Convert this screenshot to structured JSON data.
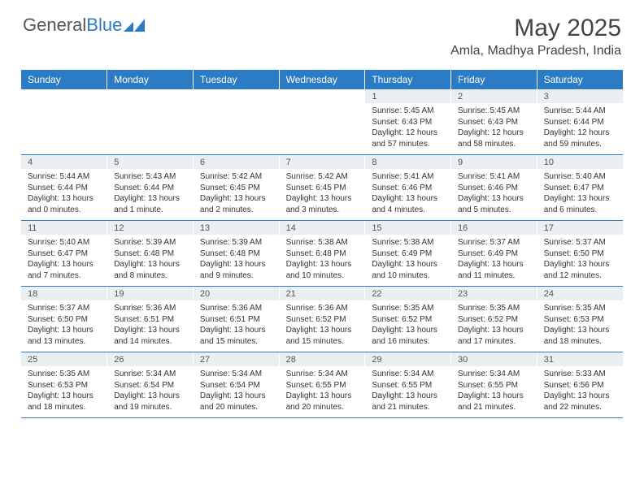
{
  "brand": {
    "general": "General",
    "blue": "Blue",
    "logo_color": "#2b7cc4"
  },
  "title": "May 2025",
  "location": "Amla, Madhya Pradesh, India",
  "colors": {
    "header_bg": "#2b7cc4",
    "header_text": "#ffffff",
    "daynum_bg": "#eceff1",
    "border": "#2b7cc4",
    "text": "#333333"
  },
  "weekdays": [
    "Sunday",
    "Monday",
    "Tuesday",
    "Wednesday",
    "Thursday",
    "Friday",
    "Saturday"
  ],
  "weeks": [
    [
      null,
      null,
      null,
      null,
      {
        "n": "1",
        "sunrise": "5:45 AM",
        "sunset": "6:43 PM",
        "daylight": "12 hours and 57 minutes."
      },
      {
        "n": "2",
        "sunrise": "5:45 AM",
        "sunset": "6:43 PM",
        "daylight": "12 hours and 58 minutes."
      },
      {
        "n": "3",
        "sunrise": "5:44 AM",
        "sunset": "6:44 PM",
        "daylight": "12 hours and 59 minutes."
      }
    ],
    [
      {
        "n": "4",
        "sunrise": "5:44 AM",
        "sunset": "6:44 PM",
        "daylight": "13 hours and 0 minutes."
      },
      {
        "n": "5",
        "sunrise": "5:43 AM",
        "sunset": "6:44 PM",
        "daylight": "13 hours and 1 minute."
      },
      {
        "n": "6",
        "sunrise": "5:42 AM",
        "sunset": "6:45 PM",
        "daylight": "13 hours and 2 minutes."
      },
      {
        "n": "7",
        "sunrise": "5:42 AM",
        "sunset": "6:45 PM",
        "daylight": "13 hours and 3 minutes."
      },
      {
        "n": "8",
        "sunrise": "5:41 AM",
        "sunset": "6:46 PM",
        "daylight": "13 hours and 4 minutes."
      },
      {
        "n": "9",
        "sunrise": "5:41 AM",
        "sunset": "6:46 PM",
        "daylight": "13 hours and 5 minutes."
      },
      {
        "n": "10",
        "sunrise": "5:40 AM",
        "sunset": "6:47 PM",
        "daylight": "13 hours and 6 minutes."
      }
    ],
    [
      {
        "n": "11",
        "sunrise": "5:40 AM",
        "sunset": "6:47 PM",
        "daylight": "13 hours and 7 minutes."
      },
      {
        "n": "12",
        "sunrise": "5:39 AM",
        "sunset": "6:48 PM",
        "daylight": "13 hours and 8 minutes."
      },
      {
        "n": "13",
        "sunrise": "5:39 AM",
        "sunset": "6:48 PM",
        "daylight": "13 hours and 9 minutes."
      },
      {
        "n": "14",
        "sunrise": "5:38 AM",
        "sunset": "6:48 PM",
        "daylight": "13 hours and 10 minutes."
      },
      {
        "n": "15",
        "sunrise": "5:38 AM",
        "sunset": "6:49 PM",
        "daylight": "13 hours and 10 minutes."
      },
      {
        "n": "16",
        "sunrise": "5:37 AM",
        "sunset": "6:49 PM",
        "daylight": "13 hours and 11 minutes."
      },
      {
        "n": "17",
        "sunrise": "5:37 AM",
        "sunset": "6:50 PM",
        "daylight": "13 hours and 12 minutes."
      }
    ],
    [
      {
        "n": "18",
        "sunrise": "5:37 AM",
        "sunset": "6:50 PM",
        "daylight": "13 hours and 13 minutes."
      },
      {
        "n": "19",
        "sunrise": "5:36 AM",
        "sunset": "6:51 PM",
        "daylight": "13 hours and 14 minutes."
      },
      {
        "n": "20",
        "sunrise": "5:36 AM",
        "sunset": "6:51 PM",
        "daylight": "13 hours and 15 minutes."
      },
      {
        "n": "21",
        "sunrise": "5:36 AM",
        "sunset": "6:52 PM",
        "daylight": "13 hours and 15 minutes."
      },
      {
        "n": "22",
        "sunrise": "5:35 AM",
        "sunset": "6:52 PM",
        "daylight": "13 hours and 16 minutes."
      },
      {
        "n": "23",
        "sunrise": "5:35 AM",
        "sunset": "6:52 PM",
        "daylight": "13 hours and 17 minutes."
      },
      {
        "n": "24",
        "sunrise": "5:35 AM",
        "sunset": "6:53 PM",
        "daylight": "13 hours and 18 minutes."
      }
    ],
    [
      {
        "n": "25",
        "sunrise": "5:35 AM",
        "sunset": "6:53 PM",
        "daylight": "13 hours and 18 minutes."
      },
      {
        "n": "26",
        "sunrise": "5:34 AM",
        "sunset": "6:54 PM",
        "daylight": "13 hours and 19 minutes."
      },
      {
        "n": "27",
        "sunrise": "5:34 AM",
        "sunset": "6:54 PM",
        "daylight": "13 hours and 20 minutes."
      },
      {
        "n": "28",
        "sunrise": "5:34 AM",
        "sunset": "6:55 PM",
        "daylight": "13 hours and 20 minutes."
      },
      {
        "n": "29",
        "sunrise": "5:34 AM",
        "sunset": "6:55 PM",
        "daylight": "13 hours and 21 minutes."
      },
      {
        "n": "30",
        "sunrise": "5:34 AM",
        "sunset": "6:55 PM",
        "daylight": "13 hours and 21 minutes."
      },
      {
        "n": "31",
        "sunrise": "5:33 AM",
        "sunset": "6:56 PM",
        "daylight": "13 hours and 22 minutes."
      }
    ]
  ],
  "labels": {
    "sunrise": "Sunrise:",
    "sunset": "Sunset:",
    "daylight": "Daylight:"
  }
}
